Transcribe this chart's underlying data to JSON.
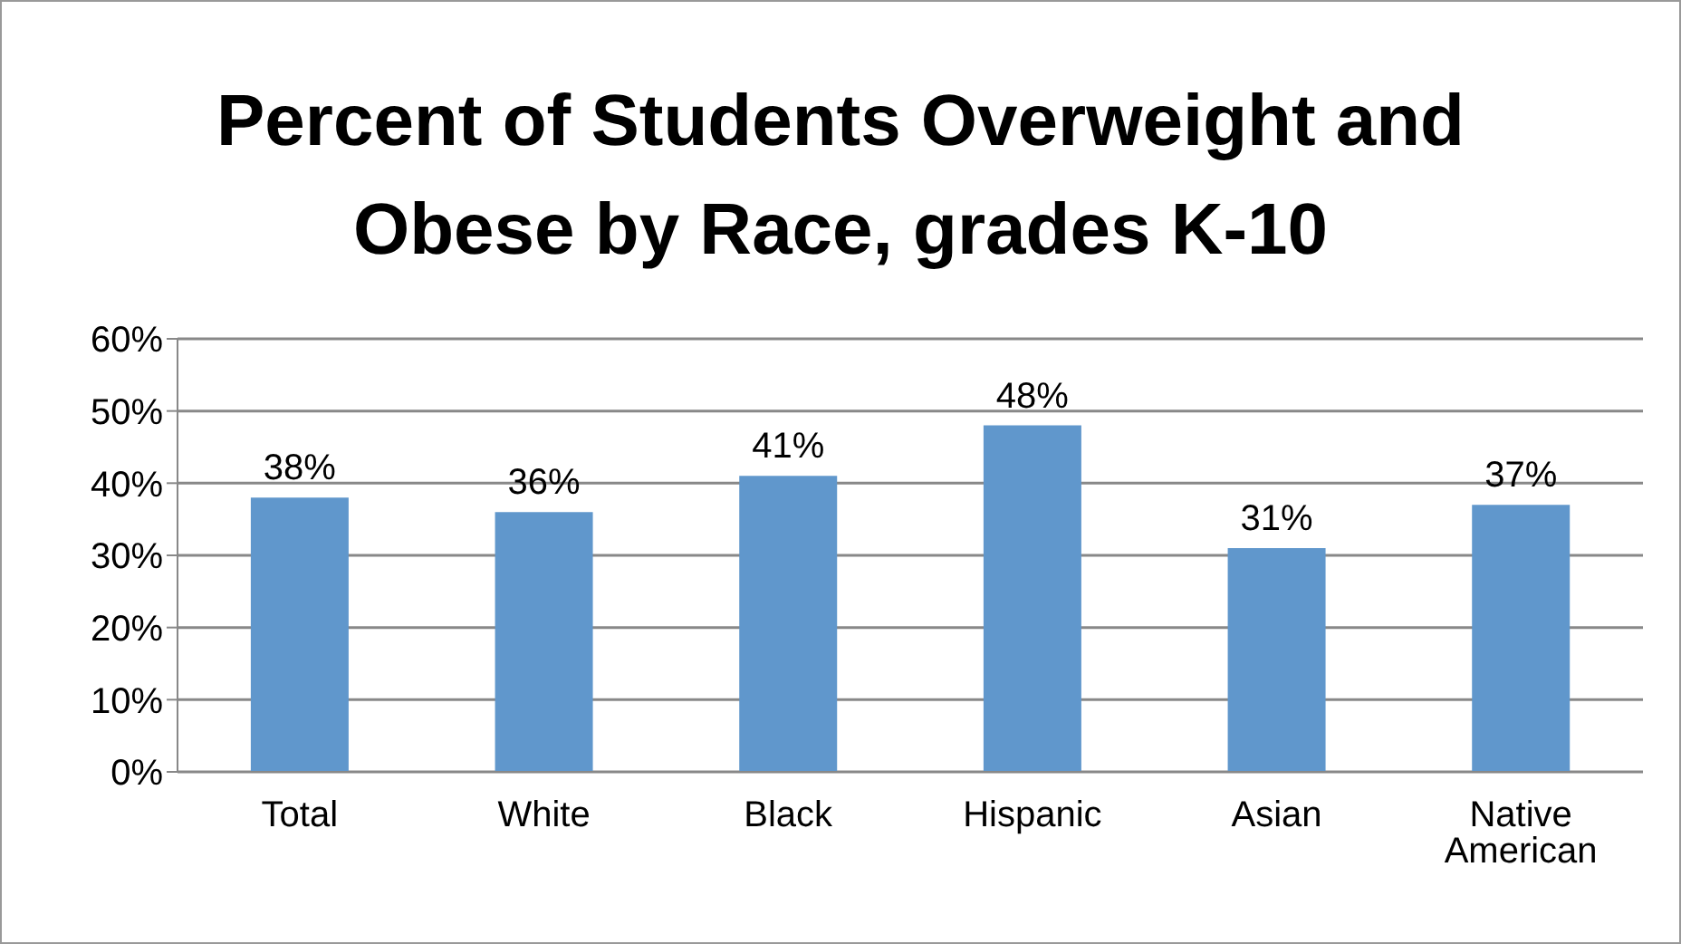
{
  "chart_data": {
    "type": "bar",
    "title": "Percent of Students Overweight and Obese by Race, grades K-10",
    "categories": [
      "Total",
      "White",
      "Black",
      "Hispanic",
      "Asian",
      "Native American"
    ],
    "values": [
      38,
      36,
      41,
      48,
      31,
      37
    ],
    "value_labels": [
      "38%",
      "36%",
      "41%",
      "48%",
      "31%",
      "37%"
    ],
    "color": "#6097cc",
    "ylim": [
      0,
      60
    ],
    "yticks": [
      {
        "value": 0,
        "label": "0%"
      },
      {
        "value": 10,
        "label": "10%"
      },
      {
        "value": 20,
        "label": "20%"
      },
      {
        "value": 30,
        "label": "30%"
      },
      {
        "value": 40,
        "label": "40%"
      },
      {
        "value": 50,
        "label": "50%"
      },
      {
        "value": 60,
        "label": "60%"
      }
    ],
    "grid": "y",
    "legend": false
  }
}
